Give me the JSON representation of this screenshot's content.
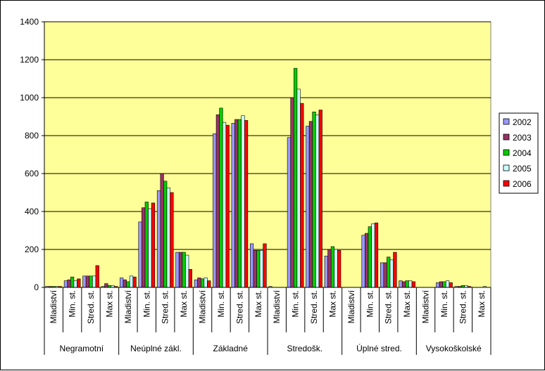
{
  "chart_data": {
    "type": "bar",
    "groups": [
      "Negramotní",
      "Neúplné zákl.",
      "Základné",
      "Stredošk.",
      "Úplné stred.",
      "Vysokoškolské"
    ],
    "subcategories": [
      "Mladiství",
      "Min. st.",
      "Stred. st.",
      "Max st."
    ],
    "ylim": [
      0,
      1400
    ],
    "yticks": [
      "0",
      "200",
      "400",
      "600",
      "800",
      "1000",
      "1200",
      "1400"
    ],
    "grid": true,
    "legend_position": "right",
    "series": [
      {
        "name": "2002",
        "color": "#9999FF",
        "values": [
          5,
          35,
          60,
          5,
          50,
          345,
          510,
          185,
          40,
          810,
          865,
          230,
          5,
          790,
          850,
          165,
          0,
          275,
          130,
          35,
          0,
          25,
          5,
          0
        ]
      },
      {
        "name": "2003",
        "color": "#993366",
        "values": [
          5,
          40,
          60,
          20,
          40,
          420,
          600,
          185,
          50,
          910,
          885,
          195,
          0,
          1000,
          875,
          200,
          0,
          285,
          130,
          30,
          0,
          30,
          5,
          0
        ]
      },
      {
        "name": "2004",
        "color": "#00CC00",
        "values": [
          5,
          55,
          60,
          10,
          30,
          450,
          560,
          185,
          45,
          945,
          885,
          195,
          0,
          1155,
          925,
          215,
          0,
          320,
          160,
          35,
          0,
          30,
          10,
          0
        ]
      },
      {
        "name": "2005",
        "color": "#CCFFFF",
        "values": [
          5,
          35,
          60,
          10,
          60,
          415,
          525,
          170,
          50,
          870,
          905,
          195,
          0,
          1045,
          910,
          200,
          0,
          335,
          145,
          35,
          0,
          35,
          10,
          5
        ]
      },
      {
        "name": "2006",
        "color": "#FF0000",
        "values": [
          5,
          45,
          115,
          5,
          55,
          445,
          500,
          95,
          35,
          855,
          880,
          230,
          0,
          970,
          935,
          195,
          0,
          340,
          185,
          30,
          0,
          25,
          5,
          0
        ]
      }
    ]
  }
}
